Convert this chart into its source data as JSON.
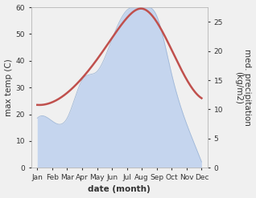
{
  "months": [
    "Jan",
    "Feb",
    "Mar",
    "Apr",
    "May",
    "Jun",
    "Jul",
    "Aug",
    "Sep",
    "Oct",
    "Nov",
    "Dec"
  ],
  "temp": [
    23.5,
    24.5,
    28.0,
    33.5,
    40.5,
    48.5,
    56.0,
    59.5,
    54.5,
    44.0,
    33.0,
    26.0
  ],
  "precip": [
    8.5,
    8.0,
    8.5,
    15.0,
    16.5,
    22.0,
    27.0,
    27.5,
    26.0,
    16.0,
    7.5,
    1.0
  ],
  "temp_color": "#c0504d",
  "precip_color": "#c5d5ee",
  "ylabel_left": "max temp (C)",
  "ylabel_right": "med. precipitation\n(kg/m2)",
  "xlabel": "date (month)",
  "ylim_left": [
    0,
    60
  ],
  "ylim_right": [
    0,
    27.5
  ],
  "yticks_left": [
    0,
    10,
    20,
    30,
    40,
    50,
    60
  ],
  "yticks_right": [
    0,
    5,
    10,
    15,
    20,
    25
  ],
  "bg_color": "#f0f0f0",
  "temp_linewidth": 1.8,
  "label_fontsize": 7.5,
  "tick_fontsize": 6.5
}
